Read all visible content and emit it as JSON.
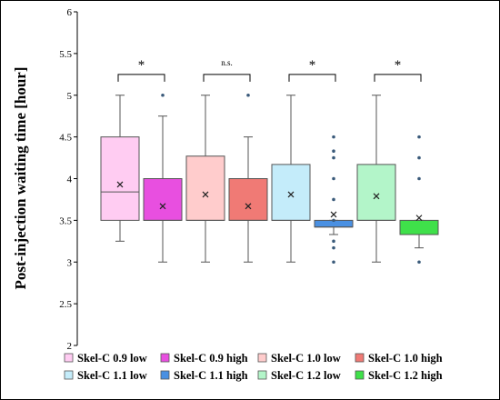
{
  "chart_data": {
    "type": "box",
    "ylabel": "Post-injection waiting time [hour]",
    "ylim": [
      2,
      6
    ],
    "y_ticks": [
      "2",
      "2.5",
      "3",
      "3.5",
      "4",
      "4.5",
      "5",
      "5.5",
      "6"
    ],
    "grid": false,
    "legend_position": "bottom",
    "series": [
      {
        "name": "Skel-C 0.9 low",
        "color": "#ffccf2",
        "min": 3.25,
        "q1": 3.5,
        "median": 3.84,
        "q3": 4.5,
        "max": 5.0,
        "mean": 3.93,
        "outliers": []
      },
      {
        "name": "Skel-C 0.9 high",
        "color": "#e84fe0",
        "min": 3.0,
        "q1": 3.5,
        "median": 3.5,
        "q3": 4.0,
        "max": 4.75,
        "mean": 3.67,
        "outliers": [
          5.0
        ]
      },
      {
        "name": "Skel-C 1.0 low",
        "color": "#ffcccc",
        "min": 3.0,
        "q1": 3.5,
        "median": 3.5,
        "q3": 4.27,
        "max": 5.0,
        "mean": 3.81,
        "outliers": []
      },
      {
        "name": "Skel-C 1.0 high",
        "color": "#f07a75",
        "min": 3.0,
        "q1": 3.5,
        "median": 3.5,
        "q3": 4.0,
        "max": 4.5,
        "mean": 3.67,
        "outliers": [
          5.0
        ]
      },
      {
        "name": "Skel-C 1.1 low",
        "color": "#c4ecfa",
        "min": 3.0,
        "q1": 3.5,
        "median": 3.5,
        "q3": 4.17,
        "max": 5.0,
        "mean": 3.81,
        "outliers": []
      },
      {
        "name": "Skel-C 1.1 high",
        "color": "#4a90e2",
        "min": 3.33,
        "q1": 3.42,
        "median": 3.42,
        "q3": 3.5,
        "max": 3.5,
        "mean": 3.57,
        "outliers": [
          3.0,
          3.17,
          3.25,
          3.5,
          3.75,
          4.0,
          4.25,
          4.33,
          4.5
        ]
      },
      {
        "name": "Skel-C 1.2 low",
        "color": "#b3f5c9",
        "min": 3.0,
        "q1": 3.5,
        "median": 3.5,
        "q3": 4.17,
        "max": 5.0,
        "mean": 3.79,
        "outliers": []
      },
      {
        "name": "Skel-C 1.2 high",
        "color": "#3fe04a",
        "min": 3.17,
        "q1": 3.33,
        "median": 3.33,
        "q3": 3.5,
        "max": 3.5,
        "mean": 3.53,
        "outliers": [
          3.0,
          4.0,
          4.25,
          4.5
        ]
      }
    ],
    "comparisons": [
      {
        "pair": [
          "Skel-C 0.9 low",
          "Skel-C 0.9 high"
        ],
        "label": "*"
      },
      {
        "pair": [
          "Skel-C 1.0 low",
          "Skel-C 1.0 high"
        ],
        "label": "n.s."
      },
      {
        "pair": [
          "Skel-C 1.1 low",
          "Skel-C 1.1 high"
        ],
        "label": "*"
      },
      {
        "pair": [
          "Skel-C 1.2 low",
          "Skel-C 1.2 high"
        ],
        "label": "*"
      }
    ]
  }
}
